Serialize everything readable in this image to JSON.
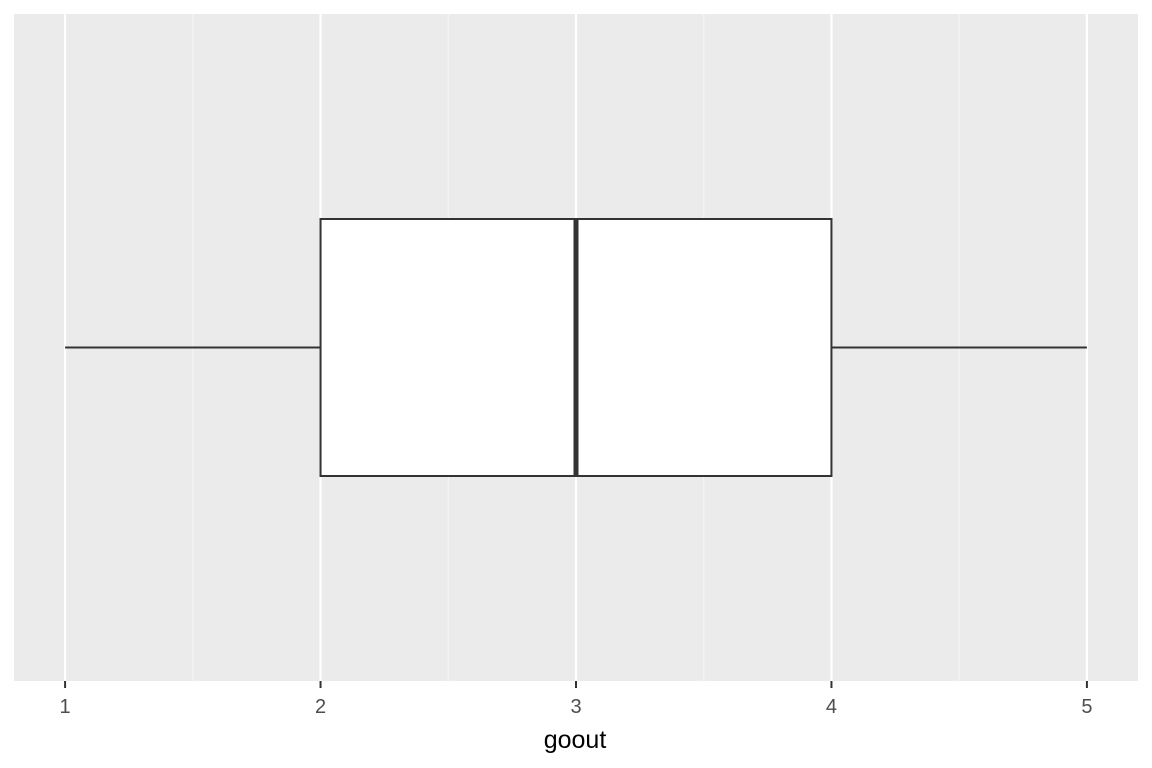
{
  "chart_data": {
    "type": "boxplot",
    "orientation": "horizontal",
    "xlabel": "goout",
    "ylabel": "",
    "title": "",
    "xlim": [
      0.8,
      5.2
    ],
    "x_ticks": [
      1,
      2,
      3,
      4,
      5
    ],
    "x_tick_labels": [
      "1",
      "2",
      "3",
      "4",
      "5"
    ],
    "grid": true,
    "y_ticks_visible": false,
    "boxes": [
      {
        "min": 1,
        "q1": 2,
        "median": 3,
        "q3": 4,
        "max": 5
      }
    ]
  },
  "colors": {
    "panel_background": "#ebebeb",
    "grid_major": "#ffffff",
    "grid_minor": "#f5f5f5",
    "box_fill": "#ffffff",
    "box_stroke": "#333333",
    "tick_label": "#4d4d4d",
    "axis_title": "#000000"
  }
}
